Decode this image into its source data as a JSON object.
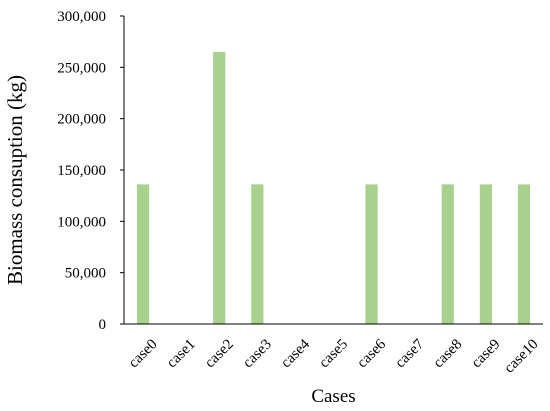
{
  "chart_data": {
    "type": "bar",
    "categories": [
      "case0",
      "case1",
      "case2",
      "case3",
      "case4",
      "case5",
      "case6",
      "case7",
      "case8",
      "case9",
      "case10"
    ],
    "values": [
      136000,
      0,
      265000,
      136000,
      0,
      0,
      136000,
      0,
      136000,
      136000,
      136000
    ],
    "xlabel": "Cases",
    "ylabel": "Biomass consuption (kg)",
    "ylim": [
      0,
      300000
    ],
    "yticks": [
      "0",
      "50,000",
      "100,000",
      "150,000",
      "200,000",
      "250,000",
      "300,000"
    ],
    "grid": false,
    "bar_color": "#a9d18e"
  }
}
